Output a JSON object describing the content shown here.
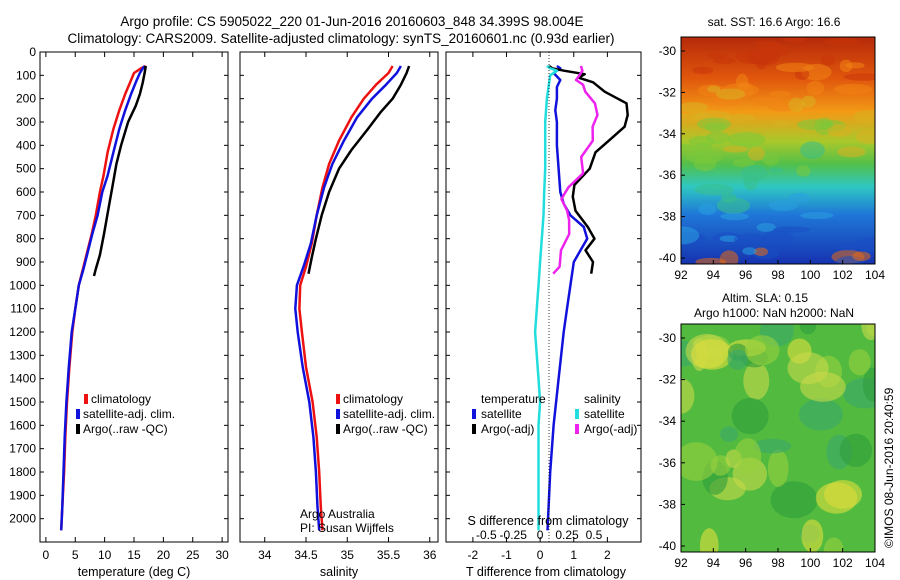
{
  "title_line1": "Argo profile: CS 5905022_220 01-Jun-2016 20160603_848 34.399S 98.004E",
  "title_line2": "Climatology: CARS2009. Satellite-adjusted climatology: synTS_20160601.nc (0.93d earlier)",
  "colors": {
    "climatology": "#ee1111",
    "satellite": "#1111dd",
    "argo": "#000000",
    "sal_satellite": "#22dddd",
    "sal_argo": "#ee22ee"
  },
  "chart_data": [
    {
      "type": "line",
      "name": "temperature-panel",
      "xlabel": "temperature (deg C)",
      "xlim": [
        -1,
        31
      ],
      "ylim": [
        0,
        2100
      ],
      "xticks": [
        "0",
        "5",
        "10",
        "15",
        "20",
        "25",
        "30"
      ],
      "yticks": [
        "0",
        "100",
        "200",
        "300",
        "400",
        "500",
        "600",
        "700",
        "800",
        "900",
        "1000",
        "1100",
        "1200",
        "1300",
        "1400",
        "1500",
        "1600",
        "1700",
        "1800",
        "1900",
        "2000"
      ],
      "legend": [
        "climatology",
        "satellite-adj. clim.",
        "Argo(..raw -QC)"
      ],
      "series": [
        {
          "name": "climatology",
          "color": "climatology",
          "pts": [
            [
              17,
              60
            ],
            [
              16.2,
              70
            ],
            [
              15,
              90
            ],
            [
              14.5,
              120
            ],
            [
              13.5,
              180
            ],
            [
              12.5,
              250
            ],
            [
              11.5,
              330
            ],
            [
              10.5,
              430
            ],
            [
              9.8,
              530
            ],
            [
              9.2,
              600
            ],
            [
              8.5,
              700
            ],
            [
              7.8,
              780
            ],
            [
              7,
              860
            ],
            [
              6.3,
              930
            ],
            [
              5.6,
              1000
            ],
            [
              5,
              1100
            ],
            [
              4.5,
              1200
            ],
            [
              4,
              1350
            ],
            [
              3.6,
              1500
            ],
            [
              3.3,
              1650
            ],
            [
              3.1,
              1800
            ],
            [
              2.8,
              1950
            ],
            [
              2.6,
              2050
            ]
          ]
        },
        {
          "name": "satellite-adj. clim.",
          "color": "satellite",
          "pts": [
            [
              16.8,
              60
            ],
            [
              16.5,
              70
            ],
            [
              16,
              90
            ],
            [
              15.3,
              130
            ],
            [
              14.5,
              180
            ],
            [
              13.5,
              250
            ],
            [
              12.5,
              330
            ],
            [
              11.5,
              430
            ],
            [
              10.5,
              530
            ],
            [
              9.6,
              600
            ],
            [
              8.8,
              700
            ],
            [
              7.9,
              780
            ],
            [
              7.1,
              860
            ],
            [
              6.4,
              930
            ],
            [
              5.6,
              1000
            ],
            [
              5,
              1100
            ],
            [
              4.4,
              1200
            ],
            [
              3.9,
              1350
            ],
            [
              3.5,
              1500
            ],
            [
              3.2,
              1650
            ],
            [
              3,
              1800
            ],
            [
              2.8,
              1950
            ],
            [
              2.6,
              2050
            ]
          ]
        },
        {
          "name": "Argo(..raw -QC)",
          "color": "argo",
          "pts": [
            [
              17,
              60
            ],
            [
              16.8,
              90
            ],
            [
              16.5,
              130
            ],
            [
              16,
              180
            ],
            [
              15.3,
              230
            ],
            [
              14,
              300
            ],
            [
              12.8,
              400
            ],
            [
              12,
              480
            ],
            [
              11.3,
              580
            ],
            [
              10.6,
              680
            ],
            [
              9.9,
              780
            ],
            [
              9.2,
              870
            ],
            [
              8.5,
              930
            ],
            [
              8.2,
              960
            ]
          ]
        }
      ]
    },
    {
      "type": "line",
      "name": "salinity-panel",
      "xlabel": "salinity",
      "xlim": [
        33.7,
        36.1
      ],
      "ylim": [
        0,
        2100
      ],
      "xticks": [
        "34",
        "34.5",
        "35",
        "35.5",
        "36"
      ],
      "legend": [
        "climatology",
        "satellite-adj. clim.",
        "Argo(..raw -QC)"
      ],
      "annotation": [
        "Argo Australia",
        "PI: Susan Wijffels"
      ],
      "series": [
        {
          "name": "climatology",
          "color": "climatology",
          "pts": [
            [
              35.55,
              60
            ],
            [
              35.5,
              90
            ],
            [
              35.35,
              140
            ],
            [
              35.2,
              200
            ],
            [
              35.05,
              280
            ],
            [
              34.9,
              380
            ],
            [
              34.78,
              480
            ],
            [
              34.7,
              580
            ],
            [
              34.63,
              700
            ],
            [
              34.57,
              820
            ],
            [
              34.5,
              920
            ],
            [
              34.43,
              1000
            ],
            [
              34.42,
              1100
            ],
            [
              34.45,
              1200
            ],
            [
              34.5,
              1350
            ],
            [
              34.58,
              1500
            ],
            [
              34.63,
              1650
            ],
            [
              34.66,
              1800
            ],
            [
              34.68,
              1950
            ],
            [
              34.7,
              2050
            ]
          ]
        },
        {
          "name": "satellite-adj. clim.",
          "color": "satellite",
          "pts": [
            [
              35.65,
              60
            ],
            [
              35.6,
              90
            ],
            [
              35.47,
              140
            ],
            [
              35.3,
              200
            ],
            [
              35.12,
              280
            ],
            [
              34.96,
              380
            ],
            [
              34.82,
              480
            ],
            [
              34.72,
              580
            ],
            [
              34.63,
              700
            ],
            [
              34.56,
              820
            ],
            [
              34.47,
              920
            ],
            [
              34.39,
              1000
            ],
            [
              34.37,
              1100
            ],
            [
              34.4,
              1200
            ],
            [
              34.46,
              1350
            ],
            [
              34.54,
              1500
            ],
            [
              34.59,
              1650
            ],
            [
              34.62,
              1800
            ],
            [
              34.64,
              1950
            ],
            [
              34.66,
              2050
            ]
          ]
        },
        {
          "name": "Argo(..raw -QC)",
          "color": "argo",
          "pts": [
            [
              35.75,
              60
            ],
            [
              35.72,
              90
            ],
            [
              35.65,
              140
            ],
            [
              35.55,
              200
            ],
            [
              35.4,
              260
            ],
            [
              35.25,
              330
            ],
            [
              35.05,
              420
            ],
            [
              34.9,
              500
            ],
            [
              34.78,
              600
            ],
            [
              34.69,
              700
            ],
            [
              34.62,
              800
            ],
            [
              34.57,
              880
            ],
            [
              34.53,
              950
            ]
          ]
        }
      ]
    },
    {
      "type": "line",
      "name": "difference-panel",
      "xlabel": "T difference from climatology",
      "xlabel2": "S difference from climatology",
      "xlim": [
        -2.8,
        3
      ],
      "ylim": [
        0,
        2100
      ],
      "xticks": [
        "-2",
        "-1",
        "0",
        "1",
        "2"
      ],
      "xticks_salinity": [
        "-0.5",
        "-0.25",
        "0",
        "0.25",
        "0.5"
      ],
      "legend_groups": [
        {
          "title": "temperature",
          "items": [
            "satellite",
            "Argo(-adj)"
          ]
        },
        {
          "title": "salinity",
          "items": [
            "satellite",
            "Argo(-adj)"
          ]
        }
      ],
      "series": [
        {
          "name": "temperature satellite",
          "color": "satellite",
          "pts": [
            [
              0.5,
              60
            ],
            [
              0.6,
              70
            ],
            [
              0.4,
              90
            ],
            [
              0.6,
              120
            ],
            [
              0.5,
              150
            ],
            [
              0.5,
              200
            ],
            [
              0.45,
              250
            ],
            [
              0.5,
              300
            ],
            [
              0.5,
              400
            ],
            [
              0.55,
              500
            ],
            [
              0.6,
              600
            ],
            [
              0.7,
              650
            ],
            [
              0.9,
              700
            ],
            [
              1.3,
              750
            ],
            [
              1.4,
              800
            ],
            [
              1.2,
              850
            ],
            [
              1,
              900
            ],
            [
              0.9,
              1000
            ],
            [
              0.8,
              1100
            ],
            [
              0.7,
              1200
            ],
            [
              0.55,
              1400
            ],
            [
              0.4,
              1600
            ],
            [
              0.3,
              1800
            ],
            [
              0.22,
              2050
            ]
          ]
        },
        {
          "name": "temperature Argo(-adj)",
          "color": "argo",
          "pts": [
            [
              0.2,
              60
            ],
            [
              0.4,
              70
            ],
            [
              0.7,
              80
            ],
            [
              1.3,
              95
            ],
            [
              1.2,
              110
            ],
            [
              1.5,
              130
            ],
            [
              2,
              170
            ],
            [
              2.5,
              220
            ],
            [
              2.65,
              270
            ],
            [
              2.5,
              320
            ],
            [
              2.1,
              370
            ],
            [
              1.7,
              430
            ],
            [
              1.4,
              500
            ],
            [
              1.1,
              570
            ],
            [
              0.9,
              620
            ],
            [
              1.1,
              680
            ],
            [
              1.4,
              750
            ],
            [
              1.6,
              800
            ],
            [
              1.4,
              850
            ],
            [
              1.5,
              900
            ],
            [
              1.6,
              950
            ]
          ]
        },
        {
          "name": "salinity satellite",
          "color": "sal_satellite",
          "pts": [
            [
              0.2,
              60
            ],
            [
              0.3,
              70
            ],
            [
              0.5,
              80
            ],
            [
              0.3,
              100
            ],
            [
              0.25,
              150
            ],
            [
              0.2,
              200
            ],
            [
              0.15,
              300
            ],
            [
              0.15,
              400
            ],
            [
              0.15,
              500
            ],
            [
              0.12,
              600
            ],
            [
              0.1,
              700
            ],
            [
              0.05,
              800
            ],
            [
              0,
              900
            ],
            [
              -0.05,
              1000
            ],
            [
              -0.1,
              1100
            ],
            [
              -0.15,
              1200
            ],
            [
              -0.1,
              1300
            ],
            [
              -0.05,
              1400
            ],
            [
              0,
              1500
            ],
            [
              -0.05,
              1600
            ],
            [
              -0.05,
              1800
            ],
            [
              -0.05,
              2050
            ]
          ]
        },
        {
          "name": "salinity Argo(-adj)",
          "color": "sal_argo",
          "pts": [
            [
              1.2,
              60
            ],
            [
              1.3,
              80
            ],
            [
              1.1,
              100
            ],
            [
              1.15,
              120
            ],
            [
              1.2,
              140
            ],
            [
              1.4,
              170
            ],
            [
              1.6,
              220
            ],
            [
              1.7,
              270
            ],
            [
              1.6,
              320
            ],
            [
              1.5,
              380
            ],
            [
              1.3,
              450
            ],
            [
              1.2,
              520
            ],
            [
              0.9,
              580
            ],
            [
              0.6,
              630
            ],
            [
              0.8,
              680
            ],
            [
              0.9,
              720
            ],
            [
              0.8,
              780
            ],
            [
              0.7,
              850
            ],
            [
              0.5,
              920
            ],
            [
              0.45,
              950
            ]
          ]
        }
      ]
    }
  ],
  "maps": {
    "sst": {
      "title": "sat. SST: 16.6 Argo: 16.6",
      "xticks": [
        "92",
        "94",
        "96",
        "98",
        "100",
        "102",
        "104"
      ],
      "yticks": [
        "-30",
        "-32",
        "-34",
        "-36",
        "-38",
        "-40"
      ],
      "palette": [
        "#ffffff",
        "#f9eb45",
        "#ff7a0f"
      ]
    },
    "sla": {
      "title1": "Altim. SLA: 0.15",
      "title2": "Argo h1000: NaN h2000: NaN",
      "xticks": [
        "92",
        "94",
        "96",
        "98",
        "100",
        "102",
        "104"
      ],
      "yticks": [
        "-30",
        "-32",
        "-34",
        "-36",
        "-38",
        "-40"
      ]
    }
  },
  "side_label": "©IMOS 08-Jun-2016 20:40:59"
}
